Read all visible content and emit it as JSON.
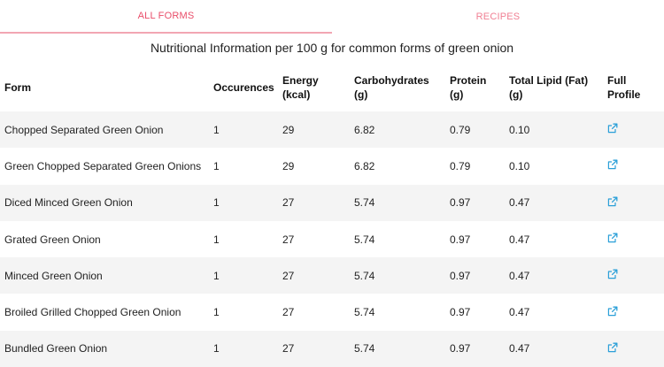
{
  "tabs": {
    "all_forms": "ALL FORMS",
    "recipes": "RECIPES"
  },
  "caption": "Nutritional Information per 100 g for common forms of green onion",
  "table": {
    "headers": {
      "form": "Form",
      "occurences": "Occurences",
      "energy_1": "Energy",
      "energy_2": "(kcal)",
      "carbs_1": "Carbohydrates",
      "carbs_2": "(g)",
      "protein_1": "Protein",
      "protein_2": "(g)",
      "fat_1": "Total Lipid (Fat)",
      "fat_2": "(g)",
      "full_1": "Full",
      "full_2": "Profile"
    },
    "rows": [
      {
        "form": "Chopped Separated Green Onion",
        "occurences": "1",
        "energy": "29",
        "carbs": "6.82",
        "protein": "0.79",
        "fat": "0.10"
      },
      {
        "form": "Green Chopped Separated Green Onions",
        "occurences": "1",
        "energy": "29",
        "carbs": "6.82",
        "protein": "0.79",
        "fat": "0.10"
      },
      {
        "form": "Diced Minced Green Onion",
        "occurences": "1",
        "energy": "27",
        "carbs": "5.74",
        "protein": "0.97",
        "fat": "0.47"
      },
      {
        "form": "Grated Green Onion",
        "occurences": "1",
        "energy": "27",
        "carbs": "5.74",
        "protein": "0.97",
        "fat": "0.47"
      },
      {
        "form": "Minced Green Onion",
        "occurences": "1",
        "energy": "27",
        "carbs": "5.74",
        "protein": "0.97",
        "fat": "0.47"
      },
      {
        "form": "Broiled Grilled Chopped Green Onion",
        "occurences": "1",
        "energy": "27",
        "carbs": "5.74",
        "protein": "0.97",
        "fat": "0.47"
      },
      {
        "form": "Bundled Green Onion",
        "occurences": "1",
        "energy": "27",
        "carbs": "5.74",
        "protein": "0.97",
        "fat": "0.47"
      }
    ],
    "full_profile_icon": "external-link-icon"
  },
  "colors": {
    "tab_active": "#e94e6a",
    "tab_inactive": "#f07f93",
    "link_icon": "#2a9fd8",
    "row_stripe": "#f4f4f4"
  }
}
